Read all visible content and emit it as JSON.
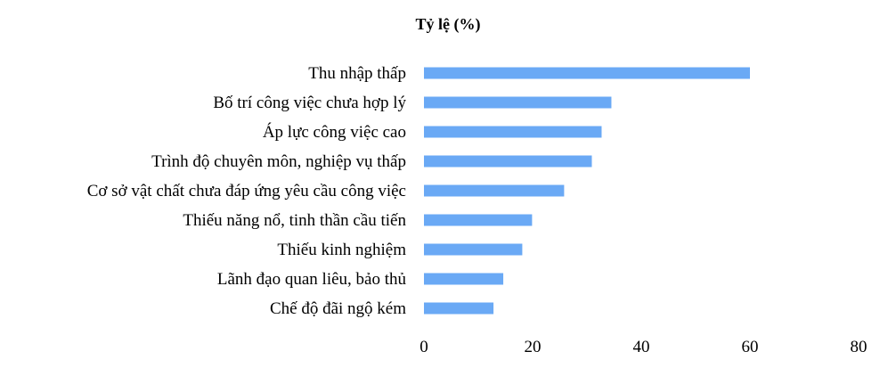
{
  "chart_data": {
    "type": "bar",
    "orientation": "horizontal",
    "title": "Tỷ lệ (%)",
    "categories": [
      "Thu nhập thấp",
      "Bố trí công việc chưa hợp lý",
      "Áp lực công việc cao",
      "Trình độ chuyên môn, nghiệp vụ thấp",
      "Cơ sở vật chất chưa đáp ứng yêu cầu công việc",
      "Thiếu năng nổ, tinh thần cầu tiến",
      "Thiếu kinh nghiệm",
      "Lãnh đạo quan liêu, bảo thủ",
      "Chế độ đãi ngộ kém"
    ],
    "values": [
      60,
      34.5,
      32.7,
      30.9,
      25.8,
      19.9,
      18.1,
      14.6,
      12.8
    ],
    "xlim": [
      0,
      80
    ],
    "xticks": [
      "0",
      "20",
      "40",
      "60",
      "80"
    ],
    "bar_color": "#6aa9f5",
    "grid": false,
    "legend": "none"
  }
}
